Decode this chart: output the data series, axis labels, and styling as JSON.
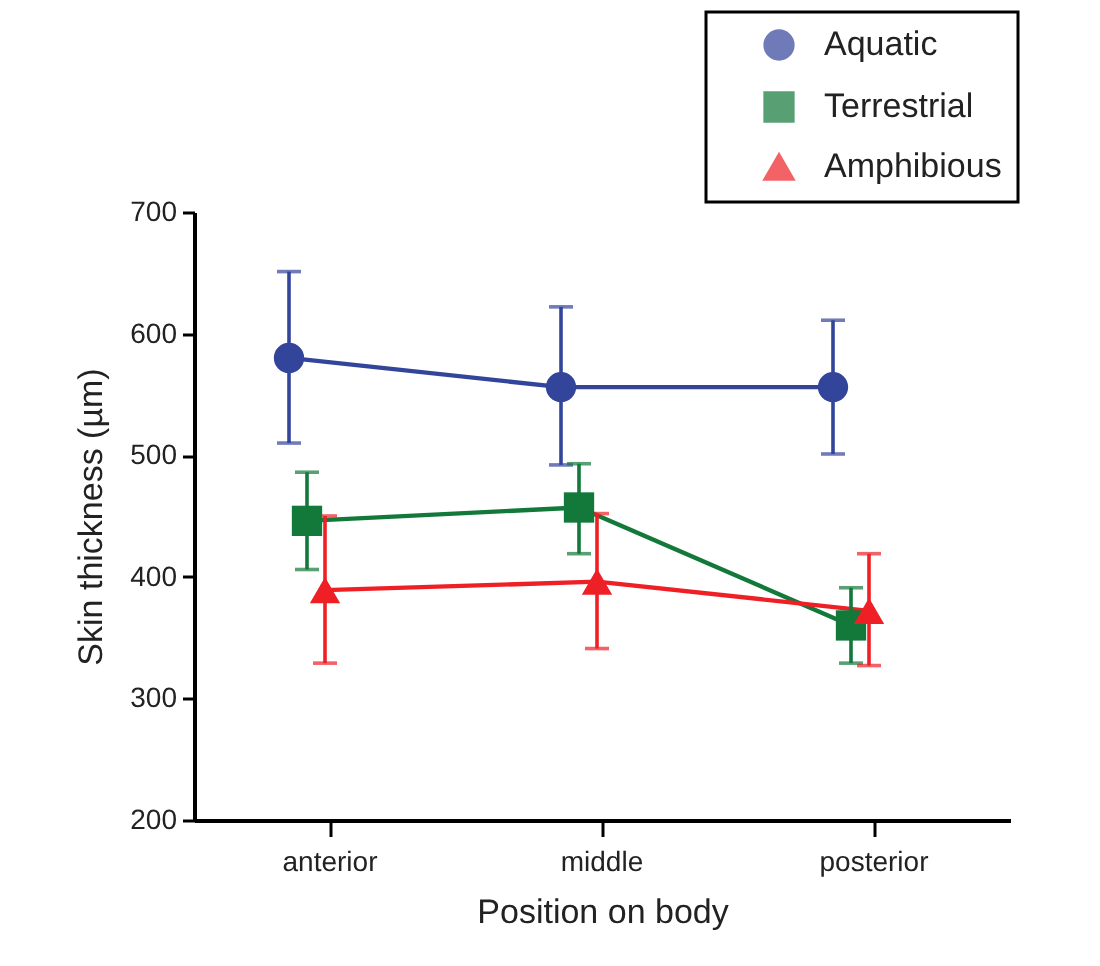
{
  "chart_data": {
    "type": "line",
    "xlabel": "Position on body",
    "ylabel": "Skin thickness (µm)",
    "categories": [
      "anterior",
      "middle",
      "posterior"
    ],
    "series": [
      {
        "name": "Aquatic",
        "color": "#33449b",
        "marker": "circle",
        "values": [
          580,
          556,
          556
        ],
        "errors": [
          [
            510,
            651
          ],
          [
            492,
            622
          ],
          [
            501,
            611
          ]
        ]
      },
      {
        "name": "Terrestrial",
        "color": "#12793a",
        "marker": "square",
        "values": [
          446,
          457,
          360
        ],
        "errors": [
          [
            406,
            486
          ],
          [
            419,
            493
          ],
          [
            329,
            391
          ]
        ]
      },
      {
        "name": "Amphibious",
        "color": "#ee2026",
        "marker": "triangle",
        "values": [
          389,
          396,
          372
        ],
        "errors": [
          [
            329,
            450
          ],
          [
            341,
            452
          ],
          [
            327,
            419
          ]
        ]
      }
    ],
    "ylim": [
      200,
      700
    ],
    "yticks": [
      200,
      300,
      400,
      500,
      600,
      700
    ],
    "grid": false,
    "legend": "top right"
  }
}
